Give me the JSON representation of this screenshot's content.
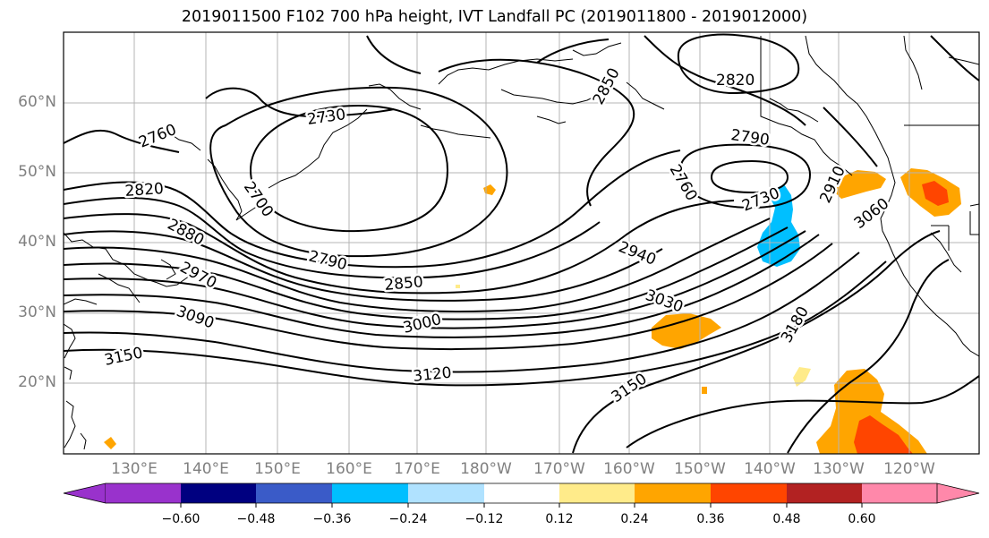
{
  "title": "2019011500 F102 700 hPa height, IVT Landfall PC (2019011800 - 2019012000)",
  "lat_labels": [
    "60°N",
    "50°N",
    "40°N",
    "30°N",
    "20°N"
  ],
  "lon_labels": [
    "130°E",
    "140°E",
    "150°E",
    "160°E",
    "170°E",
    "180°W",
    "170°W",
    "160°W",
    "150°W",
    "140°W",
    "130°W",
    "120°W"
  ],
  "contour_labels": [
    "2760",
    "2730",
    "2850",
    "2820",
    "2820",
    "2790",
    "2760",
    "2700",
    "2880",
    "2970",
    "2790",
    "2730",
    "2910",
    "2850",
    "2940",
    "3060",
    "3030",
    "3090",
    "3000",
    "3150",
    "3180",
    "3120",
    "3150"
  ],
  "colorbar": {
    "ticks": [
      "−0.60",
      "−0.48",
      "−0.36",
      "−0.24",
      "−0.12",
      "0.12",
      "0.24",
      "0.36",
      "0.48",
      "0.60"
    ],
    "colors": [
      "#9932cc",
      "#000080",
      "#3a5bc8",
      "#00bfff",
      "#b0e2ff",
      "#ffffff",
      "#ffeb8a",
      "#ffa500",
      "#ff4500",
      "#b22222",
      "#ff88aa"
    ]
  },
  "shading_colors": {
    "neg_strong": "#00bfff",
    "pos_light": "#ffeb8a",
    "pos_mid": "#ffa500",
    "pos_strong": "#ff4500"
  }
}
